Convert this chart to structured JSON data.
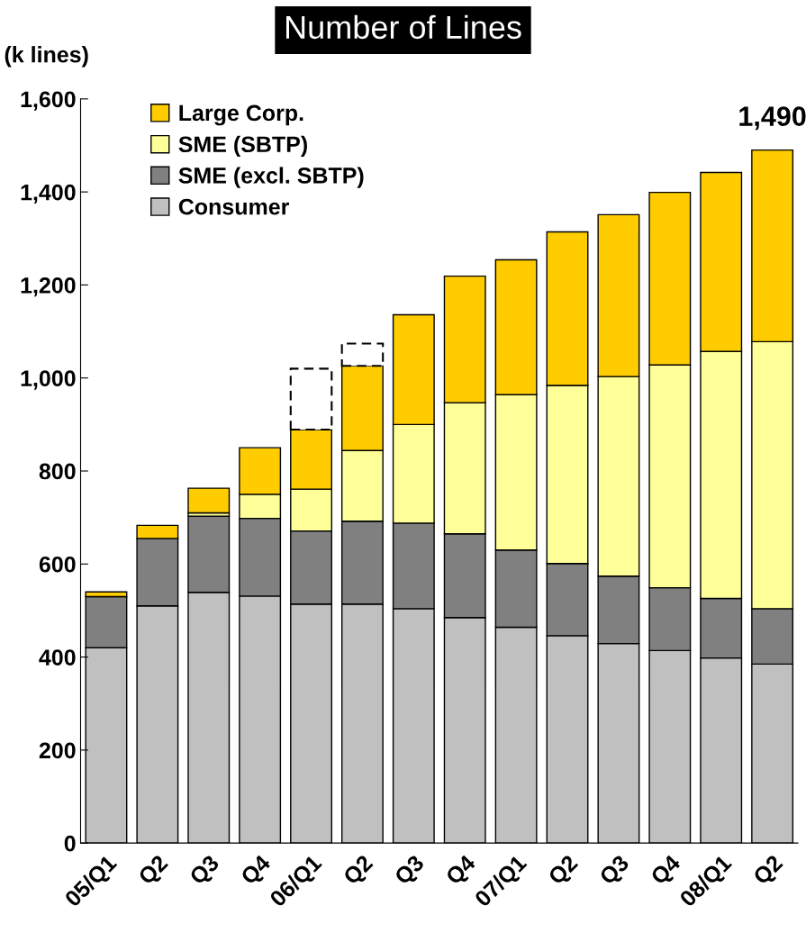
{
  "chart_data": {
    "type": "bar",
    "title": "Number of Lines",
    "ylabel": "(k lines)",
    "stacked": true,
    "categories": [
      "05/Q1",
      "Q2",
      "Q3",
      "Q4",
      "06/Q1",
      "Q2",
      "Q3",
      "Q4",
      "07/Q1",
      "Q2",
      "Q3",
      "Q4",
      "08/Q1",
      "Q2"
    ],
    "series": [
      {
        "name": "Consumer",
        "color": "#c0c0c0",
        "values": [
          420,
          510,
          539,
          531,
          514,
          514,
          504,
          485,
          464,
          446,
          429,
          414,
          398,
          385
        ]
      },
      {
        "name": "SME (excl. SBTP)",
        "color": "#808080",
        "values": [
          110,
          145,
          164,
          167,
          157,
          178,
          184,
          180,
          166,
          155,
          145,
          135,
          128,
          119
        ]
      },
      {
        "name": "SME (SBTP)",
        "color": "#ffff99",
        "values": [
          null,
          null,
          7,
          52,
          90,
          152,
          212,
          282,
          334,
          383,
          429,
          479,
          531,
          574
        ]
      },
      {
        "name": "Large Corp.",
        "color": "#ffcc00",
        "values": [
          10,
          28,
          53,
          100,
          128,
          182,
          236,
          272,
          290,
          330,
          348,
          371,
          385,
          412
        ]
      },
      {
        "color": "#ffffff",
        "line_style": "dashed",
        "values": [
          null,
          null,
          null,
          null,
          131,
          48,
          null,
          null,
          null,
          null,
          null,
          null,
          null,
          null
        ]
      }
    ],
    "ylim": [
      0,
      1600
    ],
    "yticks": [
      0,
      {
        "value": 200,
        "label": "200"
      },
      {
        "value": 400,
        "label": "400"
      },
      {
        "value": 600,
        "label": "600"
      },
      {
        "value": 800,
        "label": "800"
      },
      {
        "value": 1000,
        "label": "1,000"
      },
      {
        "value": 1200,
        "label": "1,200"
      },
      {
        "value": 1400,
        "label": "1,400"
      },
      {
        "value": 1600,
        "label": "1,600"
      }
    ],
    "legend": "top left",
    "grid": false,
    "annotations": [
      "1,490"
    ]
  }
}
